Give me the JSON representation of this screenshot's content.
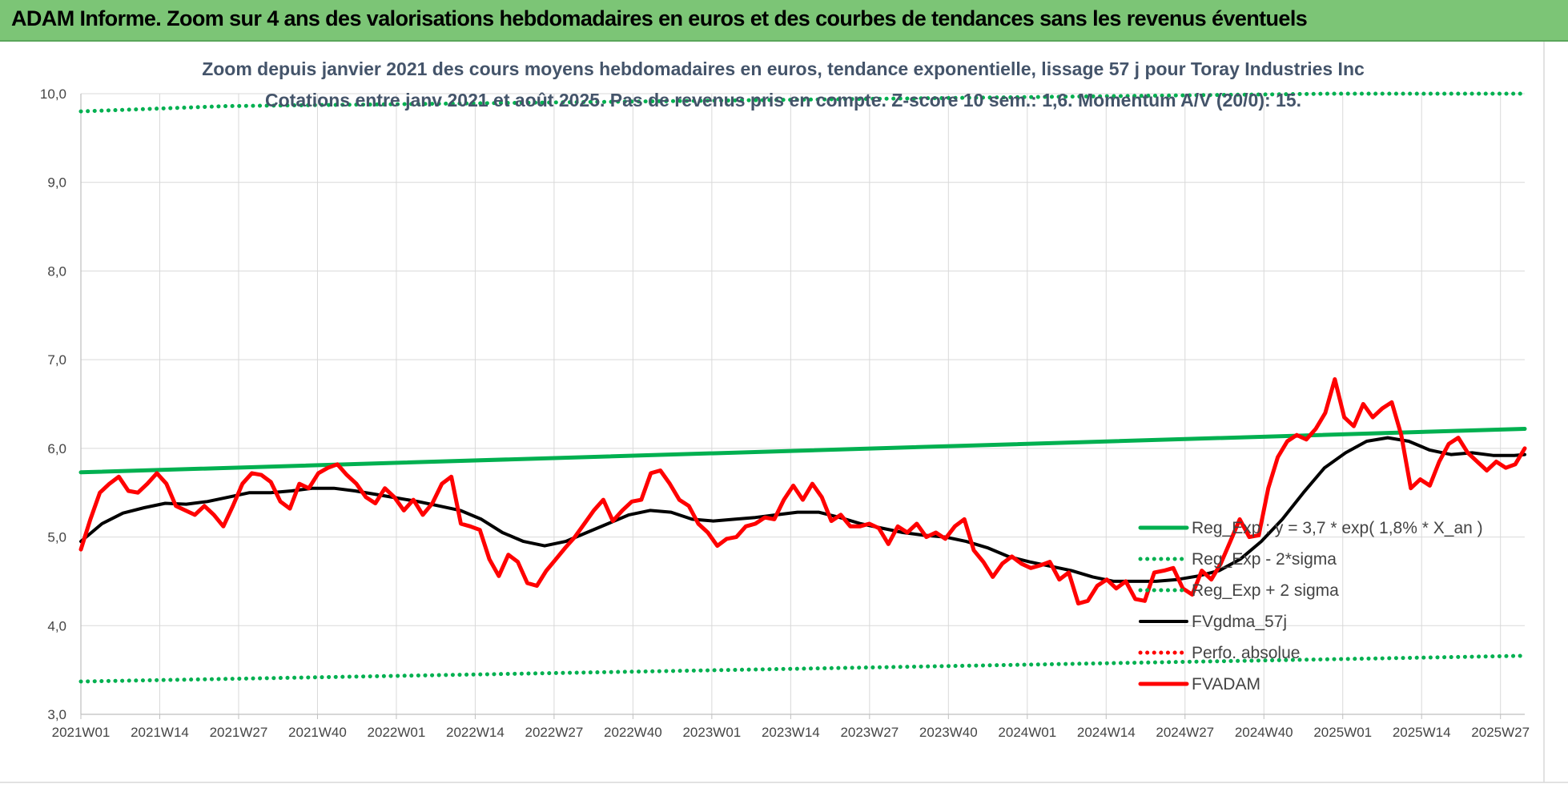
{
  "header": {
    "title": "ADAM Informe. Zoom sur 4 ans des valorisations hebdomadaires en euros et des courbes de tendances sans les revenus éventuels"
  },
  "chart_data": {
    "type": "line",
    "title": "Zoom depuis janvier 2021 des cours moyens hebdomadaires en euros, tendance exponentielle, lissage 57 j pour Toray Industries Inc",
    "subtitle": "Cotations entre janv 2021 et août 2025.  Pas de revenus pris en compte. Z-score 10 sem.: 1,6. Momentum A/V (20/0): 15.",
    "xlabel": "",
    "ylabel": "",
    "ylim": [
      3.0,
      10.0
    ],
    "y_ticks": [
      "3,0",
      "4,0",
      "5,0",
      "6,0",
      "7,0",
      "8,0",
      "9,0",
      "10,0"
    ],
    "x_tick_labels": [
      "2021W01",
      "2021W14",
      "2021W27",
      "2021W40",
      "2022W01",
      "2022W14",
      "2022W27",
      "2022W40",
      "2023W01",
      "2023W14",
      "2023W27",
      "2023W40",
      "2024W01",
      "2024W14",
      "2024W27",
      "2024W40",
      "2025W01",
      "2025W14",
      "2025W27"
    ],
    "grid": "vertical",
    "legend_position": "bottom-right",
    "n_weeks": 239,
    "series": [
      {
        "name": "Reg_Exp : y = 3,7 * exp( 1,8% *  X_an )",
        "color": "#00b050",
        "style": "solid",
        "points": [
          [
            0,
            5.73
          ],
          [
            238,
            6.22
          ]
        ]
      },
      {
        "name": "Reg_Exp - 2*sigma",
        "color": "#00b050",
        "style": "dotted",
        "points": [
          [
            0,
            3.37
          ],
          [
            238,
            3.66
          ]
        ]
      },
      {
        "name": "Reg_Exp + 2 sigma",
        "color": "#00b050",
        "style": "dotted",
        "points": [
          [
            0,
            9.8
          ],
          [
            24,
            9.86
          ],
          [
            206,
            10.0
          ],
          [
            238,
            10.0
          ]
        ]
      },
      {
        "name": "FVgdma_57j",
        "color": "#000000",
        "style": "solid",
        "points": [
          [
            0,
            4.95
          ],
          [
            4,
            5.15
          ],
          [
            8,
            5.27
          ],
          [
            12,
            5.33
          ],
          [
            16,
            5.38
          ],
          [
            20,
            5.37
          ],
          [
            24,
            5.4
          ],
          [
            28,
            5.45
          ],
          [
            32,
            5.5
          ],
          [
            36,
            5.5
          ],
          [
            40,
            5.52
          ],
          [
            44,
            5.55
          ],
          [
            48,
            5.55
          ],
          [
            52,
            5.52
          ],
          [
            56,
            5.48
          ],
          [
            60,
            5.44
          ],
          [
            64,
            5.4
          ],
          [
            68,
            5.35
          ],
          [
            72,
            5.3
          ],
          [
            76,
            5.2
          ],
          [
            80,
            5.05
          ],
          [
            84,
            4.95
          ],
          [
            88,
            4.9
          ],
          [
            92,
            4.95
          ],
          [
            96,
            5.05
          ],
          [
            100,
            5.15
          ],
          [
            104,
            5.25
          ],
          [
            108,
            5.3
          ],
          [
            112,
            5.28
          ],
          [
            116,
            5.2
          ],
          [
            120,
            5.18
          ],
          [
            124,
            5.2
          ],
          [
            128,
            5.22
          ],
          [
            132,
            5.25
          ],
          [
            136,
            5.28
          ],
          [
            140,
            5.28
          ],
          [
            144,
            5.22
          ],
          [
            148,
            5.15
          ],
          [
            152,
            5.1
          ],
          [
            156,
            5.05
          ],
          [
            160,
            5.02
          ],
          [
            164,
            5.0
          ],
          [
            168,
            4.95
          ],
          [
            172,
            4.88
          ],
          [
            176,
            4.78
          ],
          [
            180,
            4.72
          ],
          [
            184,
            4.67
          ],
          [
            188,
            4.62
          ],
          [
            192,
            4.55
          ],
          [
            196,
            4.5
          ],
          [
            200,
            4.5
          ],
          [
            204,
            4.5
          ],
          [
            208,
            4.52
          ],
          [
            212,
            4.56
          ],
          [
            216,
            4.62
          ],
          [
            220,
            4.75
          ],
          [
            224,
            4.95
          ],
          [
            228,
            5.2
          ],
          [
            232,
            5.5
          ],
          [
            236,
            5.78
          ],
          [
            240,
            5.95
          ],
          [
            244,
            6.08
          ],
          [
            248,
            6.12
          ],
          [
            252,
            6.08
          ],
          [
            256,
            5.98
          ],
          [
            260,
            5.93
          ],
          [
            264,
            5.95
          ],
          [
            268,
            5.92
          ],
          [
            272,
            5.92
          ],
          [
            274,
            5.93
          ]
        ]
      },
      {
        "name": "Perfo. absolue",
        "color": "#ff0000",
        "style": "dotted",
        "points": []
      },
      {
        "name": "FVADAM",
        "color": "#ff0000",
        "style": "solid",
        "points": [
          [
            0,
            4.86
          ],
          [
            2,
            5.2
          ],
          [
            4,
            5.5
          ],
          [
            6,
            5.6
          ],
          [
            8,
            5.68
          ],
          [
            10,
            5.52
          ],
          [
            12,
            5.5
          ],
          [
            14,
            5.6
          ],
          [
            16,
            5.72
          ],
          [
            18,
            5.6
          ],
          [
            20,
            5.35
          ],
          [
            22,
            5.3
          ],
          [
            24,
            5.25
          ],
          [
            26,
            5.35
          ],
          [
            28,
            5.25
          ],
          [
            30,
            5.12
          ],
          [
            32,
            5.35
          ],
          [
            34,
            5.6
          ],
          [
            36,
            5.72
          ],
          [
            38,
            5.7
          ],
          [
            40,
            5.62
          ],
          [
            42,
            5.4
          ],
          [
            44,
            5.32
          ],
          [
            46,
            5.6
          ],
          [
            48,
            5.55
          ],
          [
            50,
            5.72
          ],
          [
            52,
            5.78
          ],
          [
            54,
            5.82
          ],
          [
            56,
            5.7
          ],
          [
            58,
            5.6
          ],
          [
            60,
            5.45
          ],
          [
            62,
            5.38
          ],
          [
            64,
            5.55
          ],
          [
            66,
            5.45
          ],
          [
            68,
            5.3
          ],
          [
            70,
            5.42
          ],
          [
            72,
            5.25
          ],
          [
            74,
            5.38
          ],
          [
            76,
            5.6
          ],
          [
            78,
            5.68
          ],
          [
            80,
            5.15
          ],
          [
            82,
            5.12
          ],
          [
            84,
            5.08
          ],
          [
            86,
            4.75
          ],
          [
            88,
            4.56
          ],
          [
            90,
            4.8
          ],
          [
            92,
            4.72
          ],
          [
            94,
            4.48
          ],
          [
            96,
            4.45
          ],
          [
            98,
            4.62
          ],
          [
            100,
            4.75
          ],
          [
            102,
            4.88
          ],
          [
            104,
            5.0
          ],
          [
            106,
            5.15
          ],
          [
            108,
            5.3
          ],
          [
            110,
            5.42
          ],
          [
            112,
            5.18
          ],
          [
            114,
            5.3
          ],
          [
            116,
            5.4
          ],
          [
            118,
            5.42
          ],
          [
            120,
            5.72
          ],
          [
            122,
            5.75
          ],
          [
            124,
            5.6
          ],
          [
            126,
            5.42
          ],
          [
            128,
            5.35
          ],
          [
            130,
            5.15
          ],
          [
            132,
            5.05
          ],
          [
            134,
            4.9
          ],
          [
            136,
            4.98
          ],
          [
            138,
            5.0
          ],
          [
            140,
            5.12
          ],
          [
            142,
            5.15
          ],
          [
            144,
            5.22
          ],
          [
            146,
            5.2
          ],
          [
            148,
            5.42
          ],
          [
            150,
            5.58
          ],
          [
            152,
            5.42
          ],
          [
            154,
            5.6
          ],
          [
            156,
            5.45
          ],
          [
            158,
            5.18
          ],
          [
            160,
            5.25
          ],
          [
            162,
            5.12
          ],
          [
            164,
            5.12
          ],
          [
            166,
            5.15
          ],
          [
            168,
            5.1
          ],
          [
            170,
            4.92
          ],
          [
            172,
            5.12
          ],
          [
            174,
            5.05
          ],
          [
            176,
            5.15
          ],
          [
            178,
            5.0
          ],
          [
            180,
            5.05
          ],
          [
            182,
            4.98
          ],
          [
            184,
            5.12
          ],
          [
            186,
            5.2
          ],
          [
            188,
            4.85
          ],
          [
            190,
            4.72
          ],
          [
            192,
            4.55
          ],
          [
            194,
            4.7
          ],
          [
            196,
            4.78
          ],
          [
            198,
            4.7
          ],
          [
            200,
            4.65
          ],
          [
            202,
            4.68
          ],
          [
            204,
            4.72
          ],
          [
            206,
            4.52
          ],
          [
            208,
            4.6
          ],
          [
            210,
            4.25
          ],
          [
            212,
            4.28
          ],
          [
            214,
            4.45
          ],
          [
            216,
            4.52
          ],
          [
            218,
            4.42
          ],
          [
            220,
            4.5
          ],
          [
            222,
            4.3
          ],
          [
            224,
            4.28
          ],
          [
            226,
            4.6
          ],
          [
            228,
            4.62
          ],
          [
            230,
            4.65
          ],
          [
            232,
            4.42
          ],
          [
            234,
            4.35
          ],
          [
            236,
            4.62
          ],
          [
            238,
            4.52
          ],
          [
            240,
            4.7
          ],
          [
            242,
            4.95
          ],
          [
            244,
            5.2
          ],
          [
            246,
            5.0
          ],
          [
            248,
            5.02
          ],
          [
            250,
            5.55
          ],
          [
            252,
            5.9
          ],
          [
            254,
            6.08
          ],
          [
            256,
            6.15
          ],
          [
            258,
            6.1
          ],
          [
            260,
            6.22
          ],
          [
            262,
            6.4
          ],
          [
            264,
            6.78
          ],
          [
            266,
            6.35
          ],
          [
            268,
            6.25
          ],
          [
            270,
            6.5
          ],
          [
            272,
            6.35
          ],
          [
            274,
            6.45
          ],
          [
            276,
            6.52
          ],
          [
            278,
            6.15
          ],
          [
            280,
            5.55
          ],
          [
            282,
            5.65
          ],
          [
            284,
            5.58
          ],
          [
            286,
            5.85
          ],
          [
            288,
            6.05
          ],
          [
            290,
            6.12
          ],
          [
            292,
            5.95
          ],
          [
            294,
            5.85
          ],
          [
            296,
            5.75
          ],
          [
            298,
            5.85
          ],
          [
            300,
            5.78
          ],
          [
            302,
            5.82
          ],
          [
            304,
            6.0
          ]
        ]
      }
    ]
  }
}
